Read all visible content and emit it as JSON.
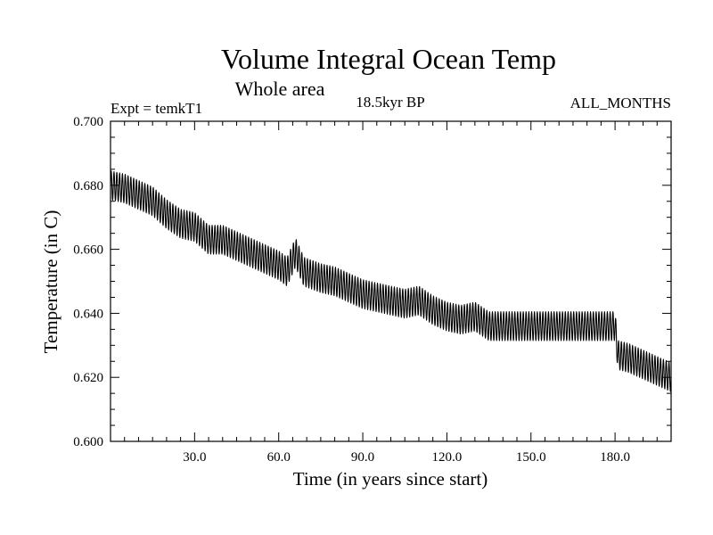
{
  "chart_data": {
    "type": "line",
    "title": "Volume Integral Ocean Temp",
    "subtitle": "Whole area",
    "expt_label": "Expt = temkT1",
    "period_label": "18.5kyr BP",
    "months_label": "ALL_MONTHS",
    "xlabel": "Time (in years since start)",
    "ylabel": "Temperature (in C)",
    "xlim": [
      0,
      200
    ],
    "ylim": [
      0.6,
      0.7
    ],
    "x_ticks": [
      30,
      60,
      90,
      120,
      150,
      180
    ],
    "x_tick_labels": [
      "30.0",
      "60.0",
      "90.0",
      "120.0",
      "150.0",
      "180.0"
    ],
    "y_ticks": [
      0.6,
      0.62,
      0.64,
      0.66,
      0.68,
      0.7
    ],
    "y_tick_labels": [
      "0.600",
      "0.620",
      "0.640",
      "0.660",
      "0.680",
      "0.700"
    ],
    "series": [
      {
        "name": "Volume integral ocean temperature",
        "line_color": "#000000",
        "seasonal_cycle_amplitude": 0.0045,
        "annual_mean": {
          "x": [
            0,
            5,
            10,
            15,
            20,
            25,
            30,
            35,
            40,
            45,
            50,
            55,
            60,
            63,
            66,
            69,
            75,
            80,
            85,
            90,
            95,
            100,
            105,
            110,
            115,
            120,
            125,
            130,
            135,
            140,
            150,
            160,
            170,
            180,
            181,
            185,
            190,
            195,
            200
          ],
          "y": [
            0.68,
            0.679,
            0.677,
            0.675,
            0.671,
            0.668,
            0.667,
            0.663,
            0.663,
            0.661,
            0.659,
            0.657,
            0.655,
            0.653,
            0.659,
            0.653,
            0.651,
            0.65,
            0.648,
            0.646,
            0.645,
            0.644,
            0.643,
            0.644,
            0.641,
            0.639,
            0.638,
            0.639,
            0.636,
            0.636,
            0.636,
            0.636,
            0.636,
            0.636,
            0.627,
            0.626,
            0.624,
            0.622,
            0.62
          ]
        }
      }
    ]
  }
}
